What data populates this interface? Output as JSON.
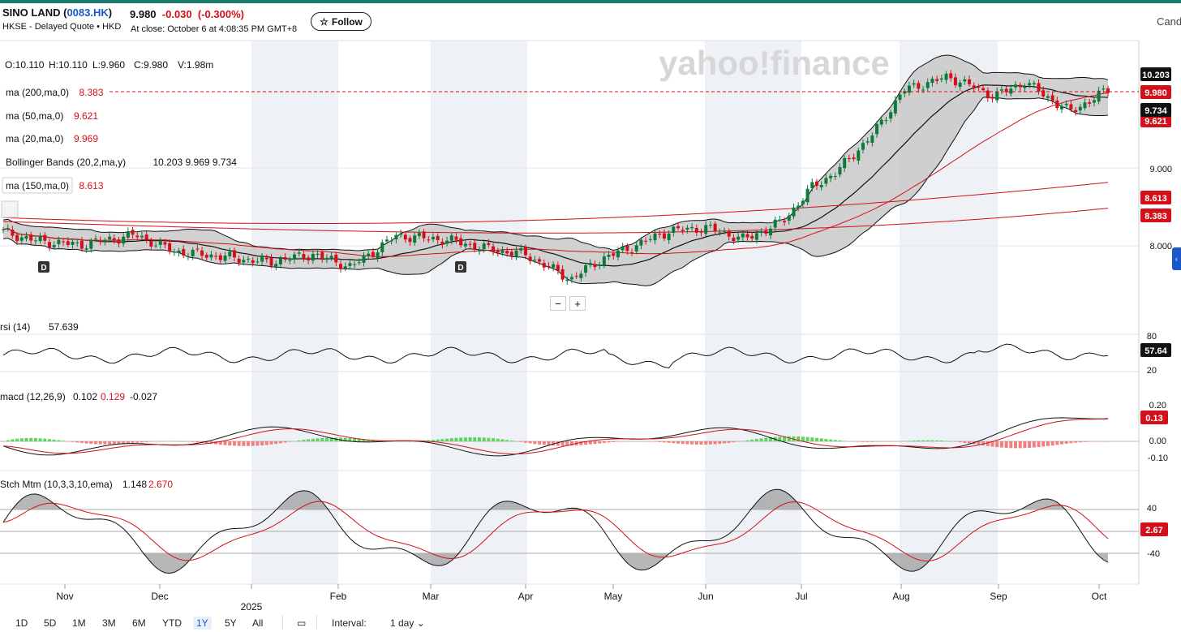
{
  "header": {
    "name": "SINO LAND",
    "ticker": "0083.HK",
    "exchange_info": "HKSE - Delayed Quote • HKD",
    "price": "9.980",
    "change": "-0.030",
    "change_pct": "(-0.300%)",
    "close_info": "At close: October 6 at 4:08:35 PM GMT+8",
    "follow_label": "Follow",
    "right_label": "Cand"
  },
  "watermark": "yahoo!finance",
  "ohlcv": {
    "o": "O:10.110",
    "h": "H:10.110",
    "l": "L:9.960",
    "c": "C:9.980",
    "v": "V:1.98m"
  },
  "indicators": [
    {
      "name": "ma (200,ma,0)",
      "value": "8.383",
      "value_color": "#d3101a"
    },
    {
      "name": "ma (50,ma,0)",
      "value": "9.621",
      "value_color": "#d3101a"
    },
    {
      "name": "ma (20,ma,0)",
      "value": "9.969",
      "value_color": "#d3101a"
    },
    {
      "name": "Bollinger Bands (20,2,ma,y)",
      "value": "10.203 9.969 9.734",
      "value_color": "#111111"
    },
    {
      "name": "ma (150,ma,0)",
      "value": "8.613",
      "value_color": "#d3101a"
    }
  ],
  "subpanels": {
    "rsi": {
      "name": "rsi (14)",
      "value": "57.639",
      "badge": "57.64",
      "ticks": [
        "80",
        "20"
      ]
    },
    "macd": {
      "name": "macd (12,26,9)",
      "v1": "0.102",
      "v2": "0.129",
      "v3": "-0.027",
      "badge": "0.13",
      "ticks": [
        "0.20",
        "0.00",
        "-0.10"
      ]
    },
    "stch": {
      "name": "Stch Mtm (10,3,3,10,ema)",
      "v1": "1.148",
      "v2": "2.670",
      "badge": "2.67",
      "ticks": [
        "40",
        "-40"
      ]
    }
  },
  "price_axis": {
    "ticks": [
      "9.000",
      "8.000"
    ],
    "badges": [
      {
        "label": "10.203",
        "bg": "#111111"
      },
      {
        "label": "9.980",
        "bg": "#d3101a"
      },
      {
        "label": "9.734",
        "bg": "#111111"
      },
      {
        "label": "8.613",
        "bg": "#d3101a"
      },
      {
        "label": "8.383",
        "bg": "#d3101a"
      }
    ],
    "hidden_badge": "9.621"
  },
  "x_axis": {
    "months": [
      "Nov",
      "Dec",
      "Feb",
      "Mar",
      "Apr",
      "May",
      "Jun",
      "Jul",
      "Aug",
      "Sep",
      "Oct"
    ],
    "year_label": "2025"
  },
  "dividend_markers": [
    "D",
    "D"
  ],
  "zoom": {
    "minus": "−",
    "plus": "+"
  },
  "ranges": [
    "1D",
    "5D",
    "1M",
    "3M",
    "6M",
    "YTD",
    "1Y",
    "5Y",
    "All"
  ],
  "selected_range": "1Y",
  "interval": {
    "label": "Interval:",
    "value": "1 day"
  },
  "colors": {
    "up": "#0b7a3a",
    "down": "#d3101a",
    "accent": "#1a57c9",
    "band_fill": "#c9c9c9",
    "shade": "#eef2f7"
  }
}
